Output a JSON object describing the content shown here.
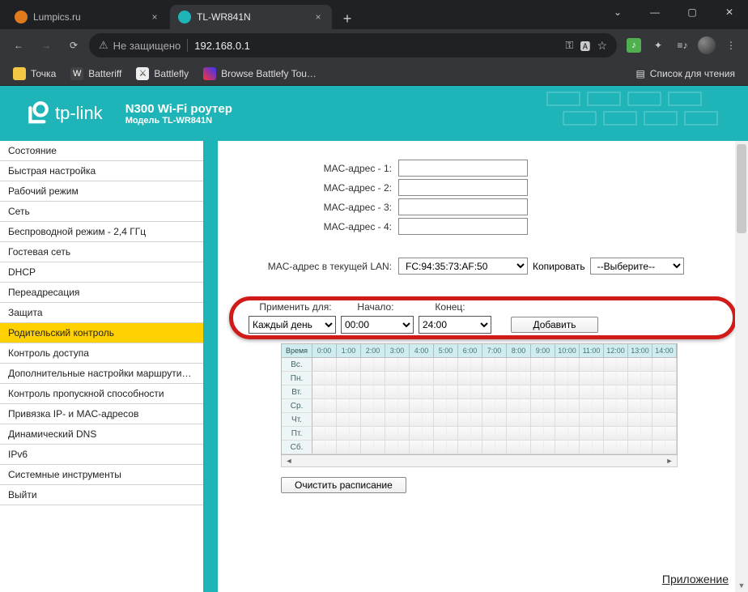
{
  "browser": {
    "tabs": [
      {
        "title": "Lumpics.ru",
        "favColor": "#e07b1d"
      },
      {
        "title": "TL-WR841N",
        "favColor": "#1fb5b8"
      }
    ],
    "security_text": "Не защищено",
    "url": "192.168.0.1",
    "bookmarks": [
      "Точка",
      "Batteriff",
      "Battlefly",
      "Browse Battlefy Tou…"
    ],
    "reading_list": "Список для чтения"
  },
  "header": {
    "brand": "tp-link",
    "title": "N300 Wi-Fi роутер",
    "model": "Модель TL-WR841N"
  },
  "nav": {
    "items": [
      "Состояние",
      "Быстрая настройка",
      "Рабочий режим",
      "Сеть",
      "Беспроводной режим - 2,4 ГГц",
      "Гостевая сеть",
      "DHCP",
      "Переадресация",
      "Защита",
      "Родительский контроль",
      "Контроль доступа",
      "Дополнительные настройки маршрутизации",
      "Контроль пропускной способности",
      "Привязка IP- и MAC-адресов",
      "Динамический DNS",
      "IPv6",
      "Системные инструменты",
      "Выйти"
    ],
    "active_index": 9
  },
  "form": {
    "mac_labels": [
      "MAC-адрес - 1:",
      "MAC-адрес - 2:",
      "MAC-адрес - 3:",
      "MAC-адрес - 4:"
    ],
    "lan_label": "MAC-адрес в текущей LAN:",
    "lan_value": "FC:94:35:73:AF:50",
    "copy_label": "Копировать",
    "copy_value": "--Выберите--"
  },
  "schedule": {
    "labels": {
      "apply": "Применить для:",
      "start": "Начало:",
      "end": "Конец:"
    },
    "day": "Каждый день",
    "start": "00:00",
    "end": "24:00",
    "add": "Добавить",
    "time_header": "Время",
    "hours": [
      "0:00",
      "1:00",
      "2:00",
      "3:00",
      "4:00",
      "5:00",
      "6:00",
      "7:00",
      "8:00",
      "9:00",
      "10:00",
      "11:00",
      "12:00",
      "13:00",
      "14:00"
    ],
    "days": [
      "Вс.",
      "Пн.",
      "Вт.",
      "Ср.",
      "Чт.",
      "Пт.",
      "Сб."
    ],
    "clear": "Очистить расписание"
  },
  "footer_link": "Приложение",
  "colors": {
    "accent": "#1fb5b8",
    "highlight": "#d11b1b",
    "nav_active": "#ffd100"
  }
}
